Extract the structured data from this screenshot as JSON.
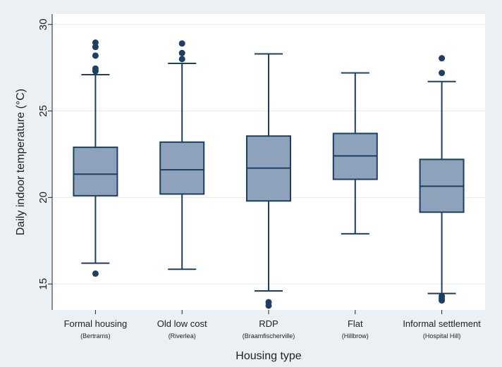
{
  "chart_data": {
    "type": "box",
    "xlabel": "Housing type",
    "ylabel": "Daily indoor temperature (°C)",
    "ylim": [
      13.5,
      30.6
    ],
    "yticks": [
      15,
      20,
      25,
      30
    ],
    "grid": true,
    "box_color": "#8ea3bb",
    "line_color": "#1c3f63",
    "categories": [
      {
        "label": "Formal housing",
        "sublabel": "(Bertrams)",
        "whisker_low": 16.2,
        "q1": 20.1,
        "median": 21.35,
        "q3": 22.9,
        "whisker_high": 27.1,
        "outliers": [
          15.6,
          27.3,
          27.45,
          28.2,
          28.7,
          28.95
        ]
      },
      {
        "label": "Old low cost",
        "sublabel": "(Riverlea)",
        "whisker_low": 15.85,
        "q1": 20.2,
        "median": 21.6,
        "q3": 23.2,
        "whisker_high": 27.75,
        "outliers": [
          28.0,
          28.35,
          28.9
        ]
      },
      {
        "label": "RDP",
        "sublabel": "(Braamfischerville)",
        "whisker_low": 14.6,
        "q1": 19.8,
        "median": 21.7,
        "q3": 23.55,
        "whisker_high": 28.3,
        "outliers": [
          13.75,
          13.95
        ]
      },
      {
        "label": "Flat",
        "sublabel": "(Hillbrow)",
        "whisker_low": 17.9,
        "q1": 21.05,
        "median": 22.4,
        "q3": 23.7,
        "whisker_high": 27.2,
        "outliers": []
      },
      {
        "label": "Informal settlement",
        "sublabel": "(Hospital Hill)",
        "whisker_low": 14.45,
        "q1": 19.15,
        "median": 20.65,
        "q3": 22.2,
        "whisker_high": 26.7,
        "outliers": [
          14.05,
          14.15,
          14.3,
          27.2,
          28.05
        ]
      }
    ]
  }
}
